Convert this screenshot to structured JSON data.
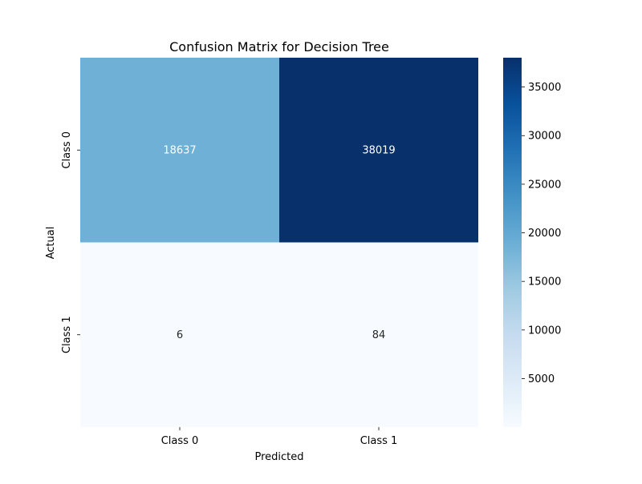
{
  "chart_data": {
    "type": "heatmap",
    "title": "Confusion Matrix for Decision Tree",
    "xlabel": "Predicted",
    "ylabel": "Actual",
    "x_categories": [
      "Class 0",
      "Class 1"
    ],
    "y_categories": [
      "Class 0",
      "Class 1"
    ],
    "values": [
      [
        18637,
        38019
      ],
      [
        6,
        84
      ]
    ],
    "colorscale": "Blues",
    "color_range": [
      6,
      38019
    ],
    "colorbar_ticks": [
      5000,
      10000,
      15000,
      20000,
      25000,
      30000,
      35000
    ],
    "annotations": true,
    "grid": false
  }
}
